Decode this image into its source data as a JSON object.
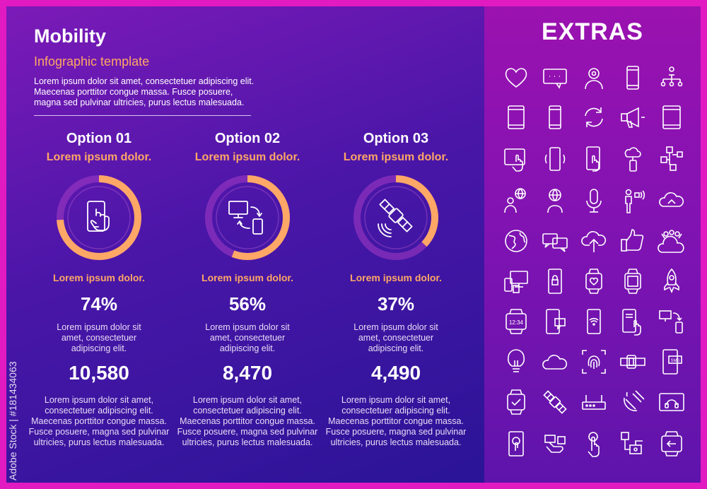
{
  "header": {
    "title": "Mobility",
    "subtitle": "Infographic template",
    "intro": "Lorem ipsum dolor sit amet, consectetuer adipiscing elit. Maecenas porttitor congue massa. Fusce posuere, magna sed pulvinar ultricies, purus lectus malesuada."
  },
  "options": [
    {
      "title": "Option 01",
      "heading": "Lorem ipsum dolor.",
      "label": "Lorem ipsum dolor.",
      "percent_text": "74%",
      "percent": 74,
      "desc_short": "Lorem ipsum dolor sit amet, consectetuer adipiscing elit.",
      "number": "10,580",
      "desc_long": "Lorem ipsum dolor sit amet, consectetuer adipiscing elit. Maecenas porttitor congue massa. Fusce posuere, magna sed pulvinar ultricies, purus lectus malesuada.",
      "icon": "phone-touch-icon"
    },
    {
      "title": "Option 02",
      "heading": "Lorem ipsum dolor.",
      "label": "Lorem ipsum dolor.",
      "percent_text": "56%",
      "percent": 56,
      "desc_short": "Lorem ipsum dolor sit amet, consectetuer adipiscing elit.",
      "number": "8,470",
      "desc_long": "Lorem ipsum dolor sit amet, consectetuer adipiscing elit. Maecenas porttitor congue massa. Fusce posuere, magna sed pulvinar ultricies, purus lectus malesuada.",
      "icon": "device-sync-icon"
    },
    {
      "title": "Option 03",
      "heading": "Lorem ipsum dolor.",
      "label": "Lorem ipsum dolor.",
      "percent_text": "37%",
      "percent": 37,
      "desc_short": "Lorem ipsum dolor sit amet, consectetuer adipiscing elit.",
      "number": "4,490",
      "desc_long": "Lorem ipsum dolor sit amet, consectetuer adipiscing elit. Maecenas porttitor congue massa. Fusce posuere, magna sed pulvinar ultricies, purus lectus malesuada.",
      "icon": "satellite-icon"
    }
  ],
  "extras": {
    "title": "EXTRAS",
    "icons": [
      "heart-icon",
      "chat-bubble-icon",
      "user-pin-icon",
      "smartphone-icon",
      "org-chart-icon",
      "tablet-icon",
      "phone-icon",
      "refresh-cycle-icon",
      "megaphone-icon",
      "tablet-frame-icon",
      "tablet-touch-icon",
      "phone-vibrate-icon",
      "phone-tap-icon",
      "phone-cloud-icon",
      "network-nodes-icon",
      "user-globe-icon",
      "globe-person-icon",
      "microphone-icon",
      "speaker-person-icon",
      "cloud-upload-icon",
      "globe-icon",
      "chat-pair-icon",
      "cloud-up-arrow-icon",
      "thumbs-up-icon",
      "cloud-crowd-icon",
      "devices-icon",
      "phone-lock-icon",
      "watch-heart-icon",
      "smartwatch-icon",
      "rocket-icon",
      "watch-time-icon",
      "phone-message-icon",
      "phone-wifi-icon",
      "phone-touch-doc-icon",
      "screen-sync-icon",
      "bulb-icon",
      "cloud-icon",
      "fingerprint-icon",
      "wrist-watch-icon",
      "sms-phone-icon",
      "watch-check-icon",
      "satellite-small-icon",
      "router-icon",
      "satellite-dish-icon",
      "tablet-music-icon",
      "phone-tap-2-icon",
      "hand-phone-icon",
      "finger-tap-icon",
      "network-device-icon",
      "watch-back-icon"
    ],
    "watch_time_text": "12:34"
  },
  "watermark": {
    "side_text": "Adobe Stock | #181434063"
  },
  "colors": {
    "accent": "#ffa766",
    "ring_track": "#a63dc4",
    "frame": "#e21ac1"
  }
}
